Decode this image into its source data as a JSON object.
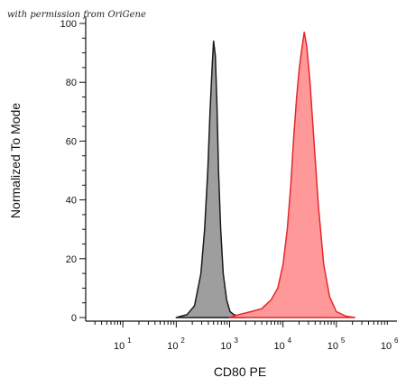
{
  "watermark": "with permission from OriGene",
  "chart_data": {
    "type": "area",
    "xlabel": "CD80 PE",
    "ylabel": "Normalized To Mode",
    "xscale": "log",
    "xlim": [
      1,
      1000000
    ],
    "ylim": [
      0,
      100
    ],
    "grid": false,
    "x_ticks": [
      {
        "base": "10",
        "exp": "1",
        "value": 10
      },
      {
        "base": "10",
        "exp": "2",
        "value": 100
      },
      {
        "base": "10",
        "exp": "3",
        "value": 1000
      },
      {
        "base": "10",
        "exp": "4",
        "value": 10000
      },
      {
        "base": "10",
        "exp": "5",
        "value": 100000
      },
      {
        "base": "10",
        "exp": "6",
        "value": 1000000
      }
    ],
    "y_ticks": [
      {
        "label": "0",
        "value": 0
      },
      {
        "label": "20",
        "value": 20
      },
      {
        "label": "40",
        "value": 40
      },
      {
        "label": "60",
        "value": 60
      },
      {
        "label": "80",
        "value": 80
      },
      {
        "label": "100",
        "value": 100
      }
    ],
    "series": [
      {
        "fill": "#9e9e9e",
        "stroke": "#1a1a1a",
        "x": [
          100,
          160,
          220,
          290,
          340,
          390,
          430,
          470,
          500,
          540,
          580,
          620,
          680,
          760,
          880,
          1020,
          1200,
          1500,
          2000
        ],
        "y": [
          0,
          1,
          4,
          15,
          30,
          50,
          70,
          85,
          94,
          89,
          72,
          50,
          30,
          15,
          6,
          2,
          1,
          0.3,
          0
        ]
      },
      {
        "fill": "#ff9999",
        "stroke": "#e5262b",
        "x": [
          1000,
          1500,
          2500,
          4000,
          6000,
          8000,
          10000,
          12000,
          14000,
          16000,
          18000,
          20000,
          22000,
          25000,
          28000,
          32000,
          38000,
          46000,
          58000,
          75000,
          100000,
          150000,
          220000
        ],
        "y": [
          0,
          1,
          2,
          3,
          6,
          10,
          18,
          30,
          45,
          62,
          75,
          84,
          90,
          97,
          92,
          80,
          60,
          38,
          18,
          7,
          2,
          0.5,
          0
        ]
      }
    ]
  }
}
